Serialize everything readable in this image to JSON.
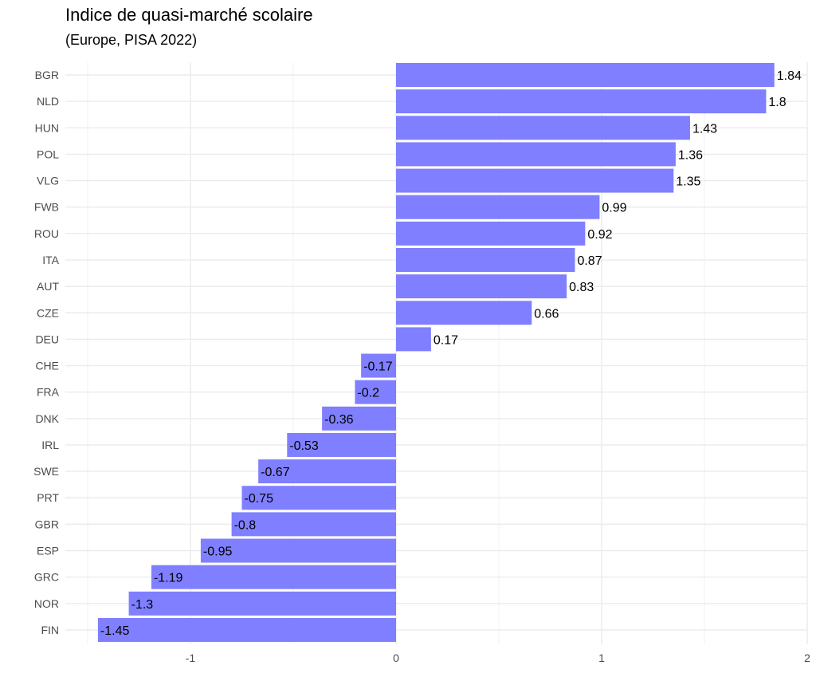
{
  "chart_data": {
    "type": "bar",
    "orientation": "horizontal",
    "title": "Indice de quasi-marché scolaire",
    "subtitle": "(Europe, PISA 2022)",
    "xlabel": "",
    "ylabel": "",
    "categories": [
      "BGR",
      "NLD",
      "HUN",
      "POL",
      "VLG",
      "FWB",
      "ROU",
      "ITA",
      "AUT",
      "CZE",
      "DEU",
      "CHE",
      "FRA",
      "DNK",
      "IRL",
      "SWE",
      "PRT",
      "GBR",
      "ESP",
      "GRC",
      "NOR",
      "FIN"
    ],
    "values": [
      1.84,
      1.8,
      1.43,
      1.36,
      1.35,
      0.99,
      0.92,
      0.87,
      0.83,
      0.66,
      0.17,
      -0.17,
      -0.2,
      -0.36,
      -0.53,
      -0.67,
      -0.75,
      -0.8,
      -0.95,
      -1.19,
      -1.3,
      -1.45
    ],
    "xlim": [
      -1.55,
      2
    ],
    "xticks": [
      "-1",
      "0",
      "1",
      "2"
    ],
    "xtick_values": [
      -1,
      0,
      1,
      2
    ],
    "grid": true,
    "bar_color": "#7f7fff"
  }
}
